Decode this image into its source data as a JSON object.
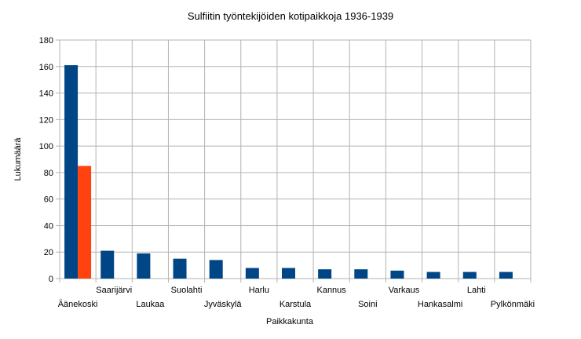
{
  "chart_data": {
    "type": "bar",
    "title": "Sulfiitin työntekijöiden kotipaikkoja 1936-1939",
    "xlabel": "Paikkakunta",
    "ylabel": "Lukumäärä",
    "ylim": [
      0,
      180
    ],
    "yticks": [
      0,
      20,
      40,
      60,
      80,
      100,
      120,
      140,
      160,
      180
    ],
    "grid": true,
    "legend": "none",
    "categories": [
      "Äänekoski",
      "Saarijärvi",
      "Laukaa",
      "Suolahti",
      "Jyväskylä",
      "Harlu",
      "Karstula",
      "Kannus",
      "Soini",
      "Varkaus",
      "Hankasalmi",
      "Lahti",
      "Pylkönmäki"
    ],
    "series": [
      {
        "color": "#004586",
        "values": [
          161,
          21,
          19,
          15,
          14,
          8,
          8,
          7,
          7,
          6,
          5,
          5,
          5
        ]
      },
      {
        "color": "#ff420e",
        "values": [
          85,
          null,
          null,
          null,
          null,
          null,
          null,
          null,
          null,
          null,
          null,
          null,
          null
        ]
      }
    ]
  }
}
